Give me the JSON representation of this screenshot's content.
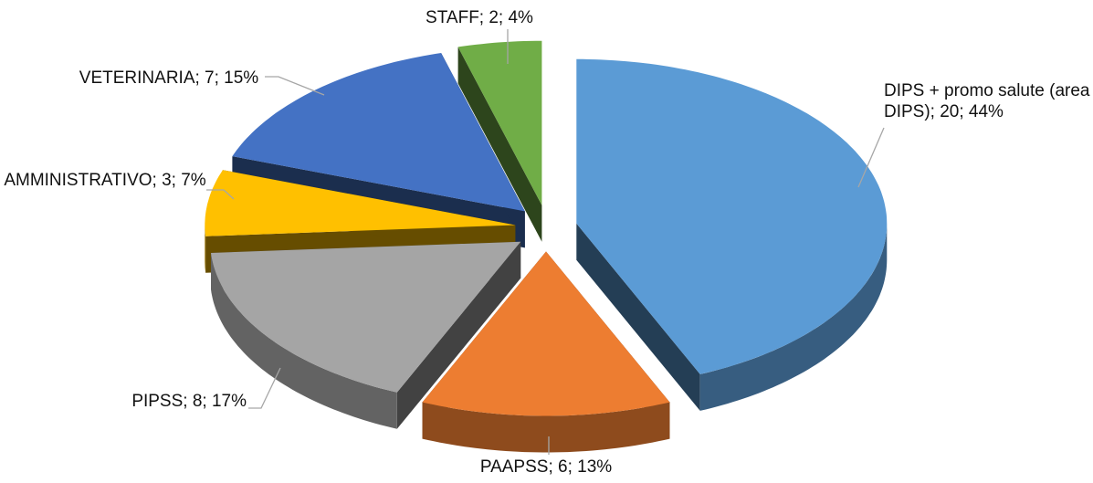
{
  "chart_data": {
    "type": "pie3d",
    "values": [
      20,
      6,
      8,
      3,
      7,
      2
    ],
    "value_labels": [
      "DIPS + promo salute (area DIPS); 20; 44%",
      "PAAPSS; 6; 13%",
      "PIPSS; 8; 17%",
      "AMMINISTRATIVO; 3; 7%",
      "VETERINARIA; 7; 15%",
      "STAFF; 2; 4%"
    ],
    "colors": [
      "#5b9bd5",
      "#ed7d31",
      "#a5a5a5",
      "#ffc000",
      "#4472c4",
      "#70ad47"
    ]
  }
}
